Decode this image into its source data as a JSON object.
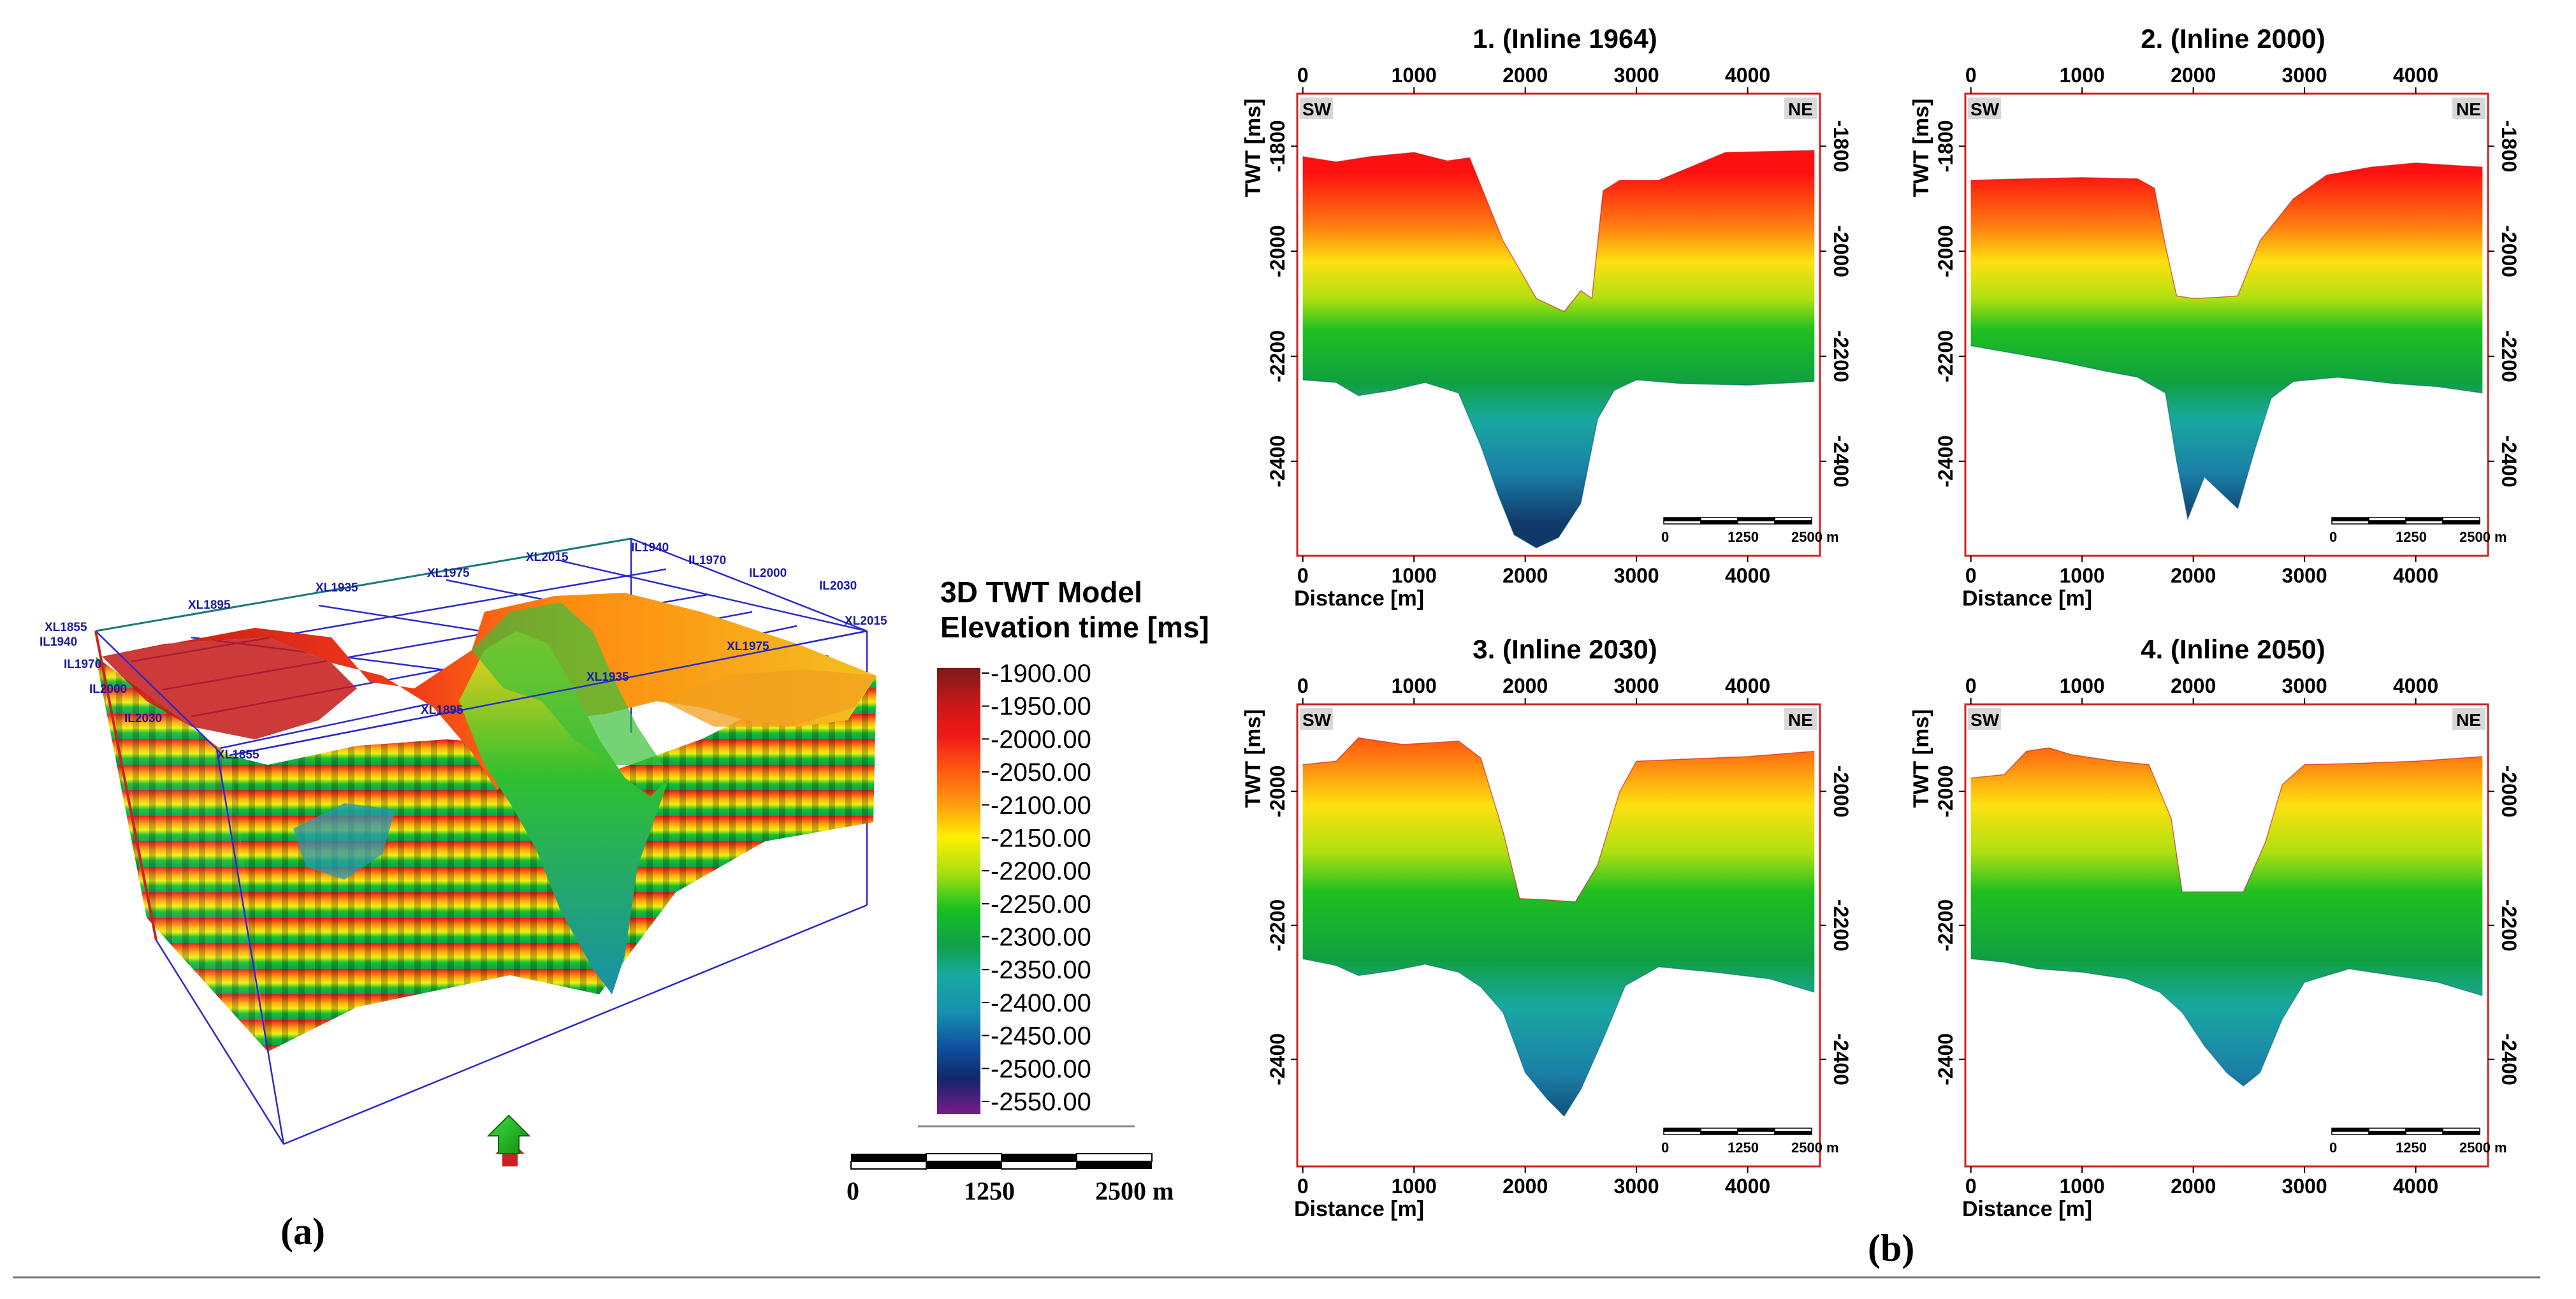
{
  "figure": {
    "label_a": "(a)",
    "label_b": "(b)",
    "colors": {
      "panel_border": "#cc2222",
      "grid_blue": "#2a2acc",
      "grid_teal": "#1a7a7a"
    }
  },
  "model3d": {
    "grid_labels": [
      "XL1855",
      "IL1940",
      "IL1970",
      "IL2000",
      "IL2030",
      "XL1895",
      "XL1935",
      "XL1975",
      "XL2015",
      "IL1940",
      "IL1970",
      "IL2000",
      "IL2030",
      "XL2015",
      "XL1975",
      "XL1935",
      "XL1895",
      "XL1855"
    ],
    "north_arrow_icon": "north-arrow-icon",
    "scalebar": {
      "labels": [
        "0",
        "1250",
        "2500 m"
      ]
    }
  },
  "legend": {
    "title_line1": "3D TWT Model",
    "title_line2": "Elevation time [ms]",
    "stops": [
      "-1900.00",
      "-1950.00",
      "-2000.00",
      "-2050.00",
      "-2100.00",
      "-2150.00",
      "-2200.00",
      "-2250.00",
      "-2300.00",
      "-2350.00",
      "-2400.00",
      "-2450.00",
      "-2500.00",
      "-2550.00"
    ],
    "colors": [
      "#7a1a1a",
      "#c81818",
      "#f01818",
      "#ff5a10",
      "#ffa010",
      "#fff000",
      "#a8e010",
      "#18c020",
      "#10a048",
      "#18a8a0",
      "#1890b0",
      "#1050a0",
      "#102868",
      "#7a1a8a"
    ]
  },
  "chart_data": [
    {
      "type": "area",
      "title": "1. (Inline 1964)",
      "xlabel": "Distance [m]",
      "ylabel": "TWT [ms]",
      "left_tag": "SW",
      "right_tag": "NE",
      "xlim": [
        -50,
        4650
      ],
      "ylim": [
        -1700,
        -2580
      ],
      "xticks": [
        0,
        1000,
        2000,
        3000,
        4000
      ],
      "yticks": [
        -1800,
        -2000,
        -2200,
        -2400
      ],
      "top_tick_labels": [
        "0",
        "1000",
        "2000",
        "3000",
        "4000"
      ],
      "bottom_tick_labels": [
        "0",
        "1000",
        "2000",
        "3000",
        "4000"
      ],
      "left_tick_labels": [
        "-1800",
        "-2000",
        "-2200",
        "-2400"
      ],
      "right_tick_labels": [
        "-1800",
        "-2000",
        "-2200",
        "-2400"
      ],
      "scalebar_labels": [
        "0",
        "1250",
        "2500 m"
      ],
      "top_horizon": {
        "x": [
          0,
          300,
          600,
          1000,
          1300,
          1500,
          1800,
          2100,
          2350,
          2500,
          2600,
          2700,
          2850,
          3200,
          3800,
          4600
        ],
        "y": [
          -1820,
          -1830,
          -1820,
          -1812,
          -1828,
          -1822,
          -1980,
          -2090,
          -2115,
          -2075,
          -2090,
          -1885,
          -1865,
          -1865,
          -1812,
          -1808
        ]
      },
      "base_horizon": {
        "x": [
          0,
          300,
          500,
          800,
          1100,
          1400,
          1600,
          1750,
          1900,
          2100,
          2300,
          2500,
          2650,
          2800,
          3000,
          3400,
          4000,
          4600
        ],
        "y": [
          -2245,
          -2250,
          -2275,
          -2265,
          -2250,
          -2270,
          -2370,
          -2460,
          -2540,
          -2565,
          -2545,
          -2480,
          -2320,
          -2265,
          -2245,
          -2252,
          -2255,
          -2248
        ]
      }
    },
    {
      "type": "area",
      "title": "2. (Inline 2000)",
      "xlabel": "Distance [m]",
      "ylabel": "TWT [ms]",
      "left_tag": "SW",
      "right_tag": "NE",
      "xlim": [
        -50,
        4650
      ],
      "ylim": [
        -1700,
        -2580
      ],
      "xticks": [
        0,
        1000,
        2000,
        3000,
        4000
      ],
      "yticks": [
        -1800,
        -2000,
        -2200,
        -2400
      ],
      "top_tick_labels": [
        "0",
        "1000",
        "2000",
        "3000",
        "4000"
      ],
      "bottom_tick_labels": [
        "0",
        "1000",
        "2000",
        "3000",
        "4000"
      ],
      "left_tick_labels": [
        "-1800",
        "-2000",
        "-2200",
        "-2400"
      ],
      "right_tick_labels": [
        "-1800",
        "-2000",
        "-2200",
        "-2400"
      ],
      "scalebar_labels": [
        "0",
        "1250",
        "2500 m"
      ],
      "top_horizon": {
        "x": [
          0,
          500,
          1000,
          1500,
          1650,
          1750,
          1850,
          2000,
          2200,
          2400,
          2600,
          2900,
          3200,
          3600,
          4000,
          4600
        ],
        "y": [
          -1865,
          -1862,
          -1860,
          -1862,
          -1880,
          -1990,
          -2085,
          -2090,
          -2088,
          -2085,
          -1980,
          -1900,
          -1855,
          -1840,
          -1832,
          -1840
        ]
      },
      "base_horizon": {
        "x": [
          0,
          400,
          800,
          1200,
          1500,
          1750,
          1850,
          1950,
          2100,
          2200,
          2400,
          2550,
          2700,
          2900,
          3300,
          3800,
          4200,
          4600
        ],
        "y": [
          -2180,
          -2195,
          -2210,
          -2228,
          -2240,
          -2270,
          -2400,
          -2510,
          -2430,
          -2450,
          -2490,
          -2380,
          -2280,
          -2248,
          -2240,
          -2252,
          -2258,
          -2270
        ]
      }
    },
    {
      "type": "area",
      "title": "3. (Inline 2030)",
      "xlabel": "Distance [m]",
      "ylabel": "TWT [ms]",
      "left_tag": "SW",
      "right_tag": "NE",
      "xlim": [
        -50,
        4650
      ],
      "ylim": [
        -1870,
        -2560
      ],
      "xticks": [
        0,
        1000,
        2000,
        3000,
        4000
      ],
      "yticks": [
        -2000,
        -2200,
        -2400
      ],
      "top_tick_labels": [
        "0",
        "1000",
        "2000",
        "3000",
        "4000"
      ],
      "bottom_tick_labels": [
        "0",
        "1000",
        "2000",
        "3000",
        "4000"
      ],
      "left_tick_labels": [
        "-2000",
        "-2200",
        "-2400"
      ],
      "right_tick_labels": [
        "-2000",
        "-2200",
        "-2400"
      ],
      "scalebar_labels": [
        "0",
        "1250",
        "2500 m"
      ],
      "top_horizon": {
        "x": [
          0,
          300,
          500,
          900,
          1400,
          1600,
          1800,
          1950,
          2200,
          2450,
          2650,
          2850,
          3000,
          3400,
          4000,
          4600
        ],
        "y": [
          -1960,
          -1955,
          -1920,
          -1930,
          -1925,
          -1950,
          -2060,
          -2160,
          -2162,
          -2165,
          -2110,
          -2000,
          -1955,
          -1952,
          -1948,
          -1940
        ]
      },
      "base_horizon": {
        "x": [
          0,
          300,
          500,
          800,
          1100,
          1400,
          1600,
          1800,
          2000,
          2200,
          2350,
          2500,
          2700,
          2900,
          3200,
          3700,
          4200,
          4600
        ],
        "y": [
          -2250,
          -2260,
          -2275,
          -2268,
          -2258,
          -2270,
          -2292,
          -2330,
          -2420,
          -2460,
          -2485,
          -2445,
          -2370,
          -2290,
          -2262,
          -2270,
          -2280,
          -2300
        ]
      }
    },
    {
      "type": "area",
      "title": "4. (Inline 2050)",
      "xlabel": "Distance [m]",
      "ylabel": "TWT [ms]",
      "left_tag": "SW",
      "right_tag": "NE",
      "xlim": [
        -50,
        4650
      ],
      "ylim": [
        -1870,
        -2560
      ],
      "xticks": [
        0,
        1000,
        2000,
        3000,
        4000
      ],
      "yticks": [
        -2000,
        -2200,
        -2400
      ],
      "top_tick_labels": [
        "0",
        "1000",
        "2000",
        "3000",
        "4000"
      ],
      "bottom_tick_labels": [
        "0",
        "1000",
        "2000",
        "3000",
        "4000"
      ],
      "left_tick_labels": [
        "-2000",
        "-2200",
        "-2400"
      ],
      "right_tick_labels": [
        "-2000",
        "-2200",
        "-2400"
      ],
      "scalebar_labels": [
        "0",
        "1250",
        "2500 m"
      ],
      "top_horizon": {
        "x": [
          0,
          300,
          500,
          700,
          900,
          1300,
          1600,
          1800,
          1900,
          2100,
          2450,
          2650,
          2800,
          3000,
          3500,
          4000,
          4600
        ],
        "y": [
          -1980,
          -1975,
          -1940,
          -1935,
          -1945,
          -1955,
          -1960,
          -2040,
          -2150,
          -2150,
          -2150,
          -2075,
          -1990,
          -1960,
          -1958,
          -1955,
          -1948
        ]
      },
      "base_horizon": {
        "x": [
          0,
          300,
          600,
          1000,
          1400,
          1700,
          1900,
          2100,
          2300,
          2450,
          2600,
          2800,
          3000,
          3400,
          3800,
          4200,
          4600
        ],
        "y": [
          -2250,
          -2255,
          -2265,
          -2270,
          -2280,
          -2300,
          -2330,
          -2380,
          -2420,
          -2440,
          -2420,
          -2340,
          -2285,
          -2265,
          -2275,
          -2285,
          -2305
        ]
      }
    }
  ]
}
